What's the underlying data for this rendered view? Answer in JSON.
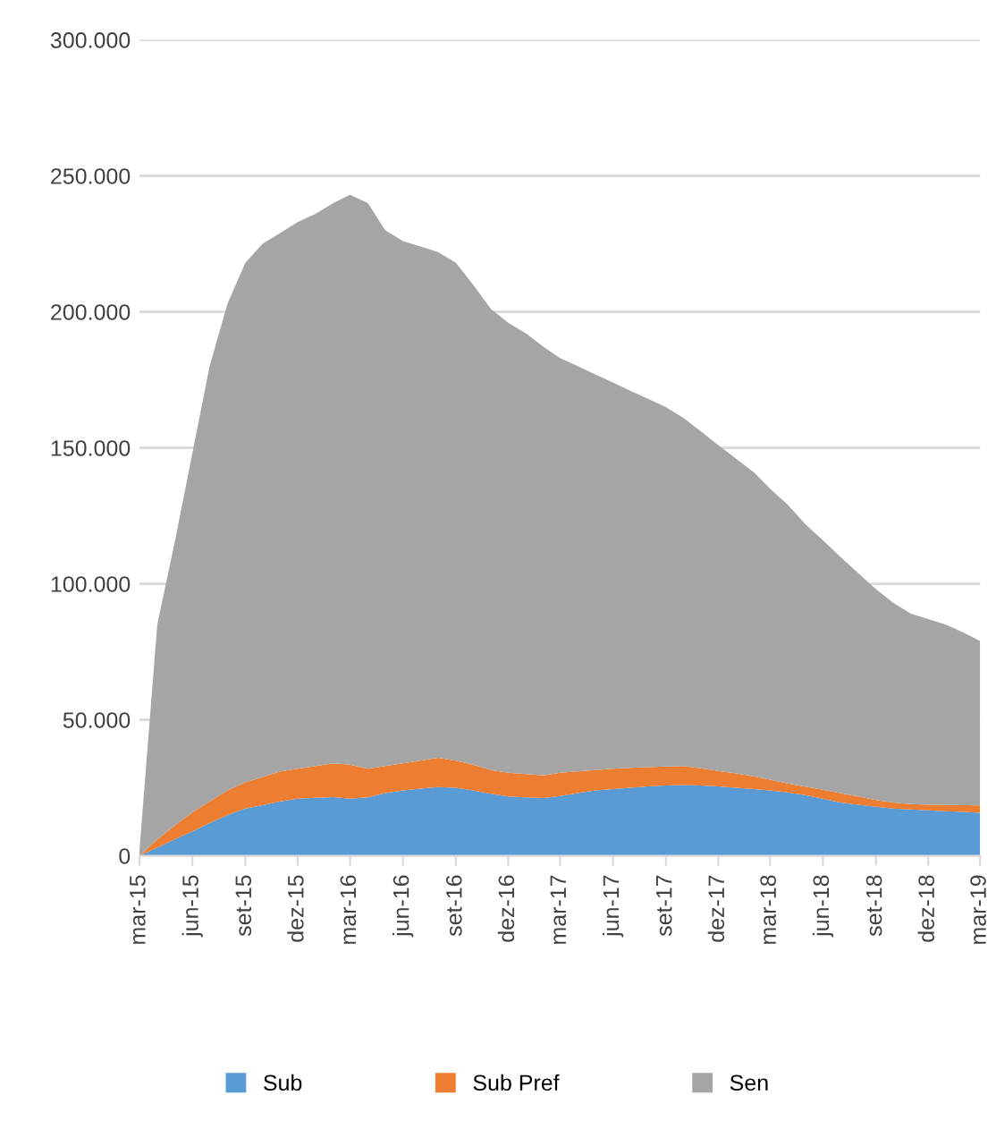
{
  "chart_data": {
    "type": "area",
    "stacked": true,
    "grid": "y",
    "legend": "bottom",
    "x": [
      "2015-03",
      "2015-04",
      "2015-05",
      "2015-06",
      "2015-07",
      "2015-08",
      "2015-09",
      "2015-10",
      "2015-11",
      "2015-12",
      "2016-01",
      "2016-02",
      "2016-03",
      "2016-04",
      "2016-05",
      "2016-06",
      "2016-07",
      "2016-08",
      "2016-09",
      "2016-10",
      "2016-11",
      "2016-12",
      "2017-01",
      "2017-02",
      "2017-03",
      "2017-04",
      "2017-05",
      "2017-06",
      "2017-07",
      "2017-08",
      "2017-09",
      "2017-10",
      "2017-11",
      "2017-12",
      "2018-01",
      "2018-02",
      "2018-03",
      "2018-04",
      "2018-05",
      "2018-06",
      "2018-07",
      "2018-08",
      "2018-09",
      "2018-10",
      "2018-11",
      "2018-12",
      "2019-01",
      "2019-02",
      "2019-03"
    ],
    "xlim": [
      "2015-03",
      "2019-03"
    ],
    "xticks": [
      {
        "value": "2015-03",
        "label": "mar-15"
      },
      {
        "value": "2015-06",
        "label": "jun-15"
      },
      {
        "value": "2015-09",
        "label": "set-15"
      },
      {
        "value": "2015-12",
        "label": "dez-15"
      },
      {
        "value": "2016-03",
        "label": "mar-16"
      },
      {
        "value": "2016-06",
        "label": "jun-16"
      },
      {
        "value": "2016-09",
        "label": "set-16"
      },
      {
        "value": "2016-12",
        "label": "dez-16"
      },
      {
        "value": "2017-03",
        "label": "mar-17"
      },
      {
        "value": "2017-06",
        "label": "jun-17"
      },
      {
        "value": "2017-09",
        "label": "set-17"
      },
      {
        "value": "2017-12",
        "label": "dez-17"
      },
      {
        "value": "2018-03",
        "label": "mar-18"
      },
      {
        "value": "2018-06",
        "label": "jun-18"
      },
      {
        "value": "2018-09",
        "label": "set-18"
      },
      {
        "value": "2018-12",
        "label": "dez-18"
      },
      {
        "value": "2019-03",
        "label": "mar-19"
      }
    ],
    "ylim": [
      0,
      300000
    ],
    "yticks": [
      0,
      {
        "value": 50000,
        "label": "50.000"
      },
      {
        "value": 100000,
        "label": "100.000"
      },
      {
        "value": 150000,
        "label": "150.000"
      },
      {
        "value": 200000,
        "label": "200.000"
      },
      {
        "value": 250000,
        "label": "250.000"
      },
      {
        "value": 300000,
        "label": "300.000"
      }
    ],
    "series": [
      {
        "name": "Sub",
        "color": "#5b9bd5",
        "values": [
          0,
          3000,
          6000,
          9000,
          12000,
          15000,
          17400,
          18600,
          20000,
          21000,
          21300,
          21600,
          21000,
          21500,
          23000,
          24000,
          24700,
          25300,
          25000,
          24000,
          22800,
          21800,
          21500,
          21200,
          22000,
          23000,
          24000,
          24500,
          25000,
          25500,
          25800,
          26000,
          25800,
          25500,
          25000,
          24500,
          24000,
          23300,
          22300,
          21000,
          19600,
          18800,
          18000,
          17400,
          17000,
          16700,
          16400,
          16100,
          15800
        ]
      },
      {
        "name": "Sub Pref",
        "color": "#ed7d31",
        "values": [
          0,
          3000,
          5000,
          7000,
          8000,
          9000,
          9600,
          10400,
          11000,
          11000,
          11700,
          12400,
          12500,
          10500,
          10000,
          10000,
          10300,
          10700,
          10000,
          9500,
          8700,
          8700,
          8500,
          8300,
          8500,
          8000,
          7500,
          7500,
          7300,
          7100,
          7000,
          7000,
          6400,
          5700,
          5300,
          4700,
          4000,
          3300,
          3100,
          3300,
          3400,
          3000,
          2500,
          2200,
          2000,
          2100,
          2300,
          2500,
          2700
        ]
      },
      {
        "name": "Sen",
        "color": "#a5a5a5",
        "values": [
          2000,
          79000,
          104000,
          132000,
          160000,
          179000,
          191000,
          196000,
          198000,
          201000,
          203000,
          206000,
          209500,
          208000,
          197000,
          192000,
          189000,
          186000,
          183000,
          176500,
          169500,
          165500,
          162000,
          157500,
          152500,
          149000,
          145500,
          142000,
          138700,
          135400,
          132200,
          128000,
          123800,
          119800,
          115700,
          111800,
          107000,
          102400,
          96600,
          91700,
          87000,
          82200,
          77500,
          73400,
          70000,
          68200,
          66300,
          63400,
          60500
        ]
      }
    ]
  }
}
